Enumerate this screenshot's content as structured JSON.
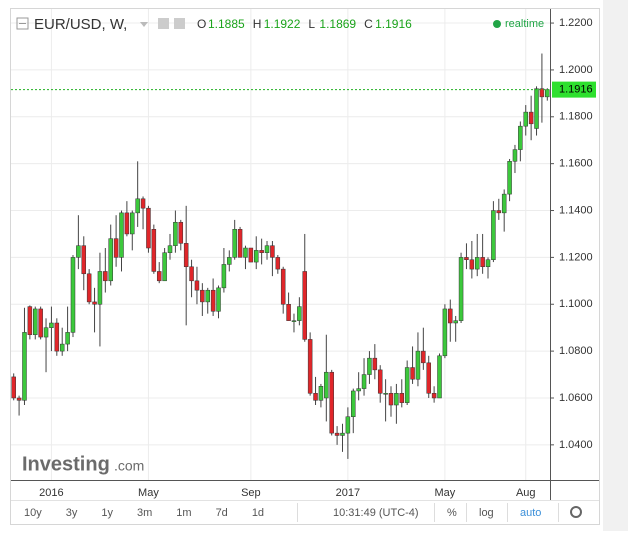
{
  "chart_data": {
    "type": "candlestick",
    "title": "EUR/USD, W,",
    "ohlc_legend": [
      {
        "label": "O",
        "value": 1.1885
      },
      {
        "label": "H",
        "value": 1.1922
      },
      {
        "label": "L",
        "value": 1.1869
      },
      {
        "label": "C",
        "value": 1.1916
      }
    ],
    "status": "realtime",
    "last_price": 1.1916,
    "watermark": [
      "Investing",
      ".com"
    ],
    "up_color": "#3cc83c",
    "down_color": "#e0262a",
    "categories": [
      null,
      null,
      null,
      null,
      null,
      null,
      null,
      "2016",
      null,
      null,
      null,
      null,
      null,
      null,
      null,
      null,
      null,
      null,
      null,
      null,
      null,
      null,
      null,
      null,
      null,
      "May",
      null,
      null,
      null,
      null,
      null,
      null,
      null,
      null,
      null,
      null,
      null,
      null,
      null,
      null,
      null,
      null,
      null,
      null,
      "Sep",
      null,
      null,
      null,
      null,
      null,
      null,
      null,
      null,
      null,
      null,
      null,
      null,
      null,
      null,
      null,
      null,
      null,
      "2017",
      null,
      null,
      null,
      null,
      null,
      null,
      null,
      null,
      null,
      null,
      null,
      null,
      null,
      null,
      null,
      null,
      null,
      "May",
      null,
      null,
      null,
      null,
      null,
      null,
      null,
      null,
      null,
      null,
      null,
      null,
      null,
      null,
      "Aug",
      null,
      null,
      null,
      null
    ],
    "open": [
      1.069,
      1.06,
      1.059,
      1.099,
      1.087,
      1.098,
      1.086,
      1.09,
      1.092,
      1.08,
      1.083,
      1.088,
      1.12,
      1.125,
      1.113,
      1.101,
      1.1,
      1.114,
      1.11,
      1.128,
      1.12,
      1.139,
      1.13,
      1.139,
      1.145,
      1.141,
      1.132,
      1.114,
      1.11,
      1.122,
      1.125,
      1.135,
      1.126,
      1.116,
      1.11,
      1.106,
      1.101,
      1.106,
      1.097,
      1.107,
      1.117,
      1.12,
      1.132,
      1.12,
      1.124,
      1.118,
      1.123,
      1.122,
      1.125,
      1.12,
      1.115,
      1.1,
      1.093,
      1.093,
      1.114,
      1.085,
      1.062,
      1.059,
      1.06,
      1.071,
      1.045,
      1.044,
      1.045,
      1.052,
      1.063,
      1.064,
      1.07,
      1.077,
      1.072,
      1.062,
      1.062,
      1.057,
      1.062,
      1.058,
      1.073,
      1.068,
      1.08,
      1.075,
      1.062,
      1.06,
      1.078,
      1.098,
      1.092,
      1.093,
      1.12,
      1.119,
      1.115,
      1.12,
      1.116,
      1.119,
      1.14,
      1.139,
      1.147,
      1.161,
      1.166,
      1.176,
      1.182,
      1.175,
      1.192,
      1.1885
    ],
    "high": [
      1.0705,
      1.061,
      1.0985,
      1.0995,
      1.099,
      1.099,
      1.094,
      1.099,
      1.094,
      1.09,
      1.099,
      1.121,
      1.138,
      1.129,
      1.115,
      1.107,
      1.122,
      1.124,
      1.134,
      1.138,
      1.14,
      1.144,
      1.14,
      1.161,
      1.146,
      1.142,
      1.134,
      1.118,
      1.124,
      1.13,
      1.14,
      1.136,
      1.142,
      1.119,
      1.116,
      1.109,
      1.107,
      1.111,
      1.108,
      1.124,
      1.123,
      1.136,
      1.133,
      1.125,
      1.124,
      1.129,
      1.128,
      1.127,
      1.127,
      1.121,
      1.116,
      1.105,
      1.096,
      1.103,
      1.13,
      1.088,
      1.069,
      1.066,
      1.087,
      1.072,
      1.048,
      1.049,
      1.056,
      1.064,
      1.071,
      1.077,
      1.08,
      1.083,
      1.074,
      1.068,
      1.065,
      1.066,
      1.068,
      1.076,
      1.082,
      1.088,
      1.09,
      1.078,
      1.065,
      1.079,
      1.1,
      1.102,
      1.095,
      1.122,
      1.126,
      1.127,
      1.13,
      1.13,
      1.12,
      1.144,
      1.145,
      1.149,
      1.162,
      1.168,
      1.178,
      1.185,
      1.189,
      1.193,
      1.207,
      1.1922
    ],
    "low": [
      1.059,
      1.0525,
      1.057,
      1.085,
      1.085,
      1.085,
      1.071,
      1.08,
      1.078,
      1.078,
      1.08,
      1.086,
      1.115,
      1.106,
      1.1,
      1.088,
      1.082,
      1.105,
      1.108,
      1.116,
      1.114,
      1.129,
      1.123,
      1.133,
      1.132,
      1.122,
      1.113,
      1.109,
      1.11,
      1.119,
      1.122,
      1.123,
      1.091,
      1.103,
      1.1,
      1.095,
      1.096,
      1.095,
      1.094,
      1.105,
      1.114,
      1.119,
      1.12,
      1.115,
      1.118,
      1.115,
      1.117,
      1.119,
      1.112,
      1.113,
      1.096,
      1.093,
      1.088,
      1.091,
      1.084,
      1.061,
      1.057,
      1.056,
      1.05,
      1.044,
      1.04,
      1.037,
      1.034,
      1.045,
      1.059,
      1.061,
      1.066,
      1.068,
      1.058,
      1.05,
      1.052,
      1.049,
      1.056,
      1.057,
      1.066,
      1.065,
      1.072,
      1.06,
      1.058,
      1.06,
      1.077,
      1.084,
      1.084,
      1.092,
      1.115,
      1.111,
      1.112,
      1.113,
      1.111,
      1.118,
      1.136,
      1.131,
      1.144,
      1.156,
      1.161,
      1.172,
      1.17,
      1.172,
      1.1775,
      1.1869
    ],
    "close": [
      1.06,
      1.059,
      1.088,
      1.087,
      1.098,
      1.086,
      1.09,
      1.092,
      1.08,
      1.083,
      1.088,
      1.12,
      1.125,
      1.113,
      1.101,
      1.1,
      1.114,
      1.11,
      1.128,
      1.12,
      1.139,
      1.13,
      1.139,
      1.145,
      1.141,
      1.124,
      1.114,
      1.11,
      1.122,
      1.125,
      1.135,
      1.126,
      1.116,
      1.11,
      1.106,
      1.101,
      1.106,
      1.097,
      1.107,
      1.117,
      1.12,
      1.132,
      1.12,
      1.124,
      1.118,
      1.123,
      1.122,
      1.125,
      1.12,
      1.115,
      1.1,
      1.093,
      1.093,
      1.099,
      1.085,
      1.062,
      1.059,
      1.065,
      1.071,
      1.045,
      1.044,
      1.045,
      1.052,
      1.063,
      1.064,
      1.07,
      1.077,
      1.072,
      1.062,
      1.062,
      1.057,
      1.062,
      1.058,
      1.073,
      1.068,
      1.08,
      1.075,
      1.062,
      1.06,
      1.078,
      1.098,
      1.092,
      1.093,
      1.12,
      1.119,
      1.115,
      1.12,
      1.116,
      1.119,
      1.14,
      1.139,
      1.147,
      1.161,
      1.166,
      1.176,
      1.182,
      1.177,
      1.192,
      1.1885,
      1.1916
    ],
    "ylim": [
      1.025,
      1.226
    ],
    "yticks": [
      {
        "value": 1.04,
        "label": "1.0400"
      },
      {
        "value": 1.06,
        "label": "1.0600"
      },
      {
        "value": 1.08,
        "label": "1.0800"
      },
      {
        "value": 1.1,
        "label": "1.1000"
      },
      {
        "value": 1.12,
        "label": "1.1200"
      },
      {
        "value": 1.14,
        "label": "1.1400"
      },
      {
        "value": 1.16,
        "label": "1.1600"
      },
      {
        "value": 1.18,
        "label": "1.1800"
      },
      {
        "value": 1.2,
        "label": "1.2000"
      },
      {
        "value": 1.22,
        "label": "1.2200"
      }
    ],
    "grid": true,
    "toolbar": {
      "ranges": [
        "10y",
        "3y",
        "1y",
        "3m",
        "1m",
        "7d",
        "1d"
      ],
      "time": "10:31:49 (UTC-4)",
      "options": [
        "%",
        "log",
        "auto"
      ]
    }
  }
}
